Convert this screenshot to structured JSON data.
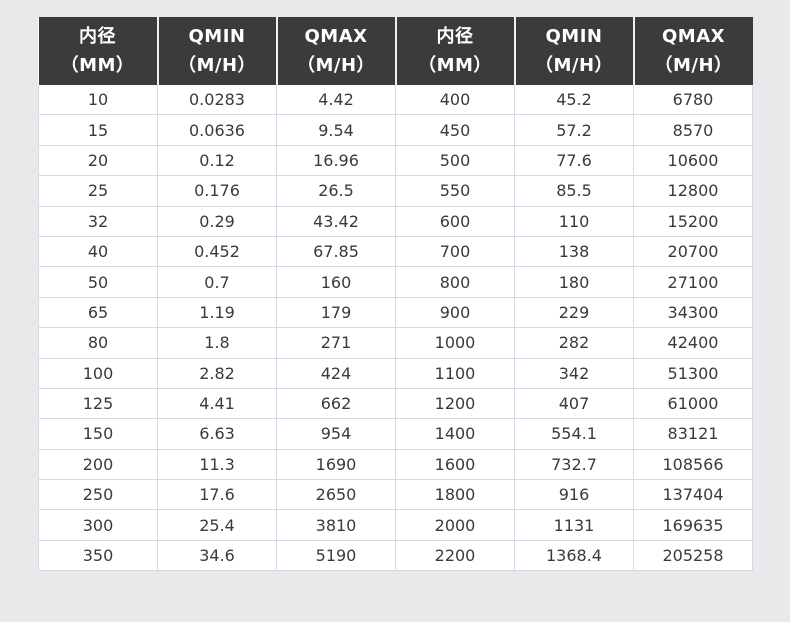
{
  "header": {
    "columns": [
      {
        "line1": "内径",
        "line2": "（MM）"
      },
      {
        "line1": "QMIN",
        "line2": "（M/H）"
      },
      {
        "line1": "QMAX",
        "line2": "（M/H）"
      },
      {
        "line1": "内径",
        "line2": "（MM）"
      },
      {
        "line1": "QMIN",
        "line2": "（M/H）"
      },
      {
        "line1": "QMAX",
        "line2": "（M/H）"
      }
    ]
  },
  "rows": [
    [
      "10",
      "0.0283",
      "4.42",
      "400",
      "45.2",
      "6780"
    ],
    [
      "15",
      "0.0636",
      "9.54",
      "450",
      "57.2",
      "8570"
    ],
    [
      "20",
      "0.12",
      "16.96",
      "500",
      "77.6",
      "10600"
    ],
    [
      "25",
      "0.176",
      "26.5",
      "550",
      "85.5",
      "12800"
    ],
    [
      "32",
      "0.29",
      "43.42",
      "600",
      "110",
      "15200"
    ],
    [
      "40",
      "0.452",
      "67.85",
      "700",
      "138",
      "20700"
    ],
    [
      "50",
      "0.7",
      "160",
      "800",
      "180",
      "27100"
    ],
    [
      "65",
      "1.19",
      "179",
      "900",
      "229",
      "34300"
    ],
    [
      "80",
      "1.8",
      "271",
      "1000",
      "282",
      "42400"
    ],
    [
      "100",
      "2.82",
      "424",
      "1100",
      "342",
      "51300"
    ],
    [
      "125",
      "4.41",
      "662",
      "1200",
      "407",
      "61000"
    ],
    [
      "150",
      "6.63",
      "954",
      "1400",
      "554.1",
      "83121"
    ],
    [
      "200",
      "11.3",
      "1690",
      "1600",
      "732.7",
      "108566"
    ],
    [
      "250",
      "17.6",
      "2650",
      "1800",
      "916",
      "137404"
    ],
    [
      "300",
      "25.4",
      "3810",
      "2000",
      "1131",
      "169635"
    ],
    [
      "350",
      "34.6",
      "5190",
      "2200",
      "1368.4",
      "205258"
    ]
  ],
  "colors": {
    "header_bg": "#3b3b3b",
    "header_text": "#ffffff",
    "page_bg": "#e9e8ea",
    "cell_border": "#d9d9e6"
  }
}
